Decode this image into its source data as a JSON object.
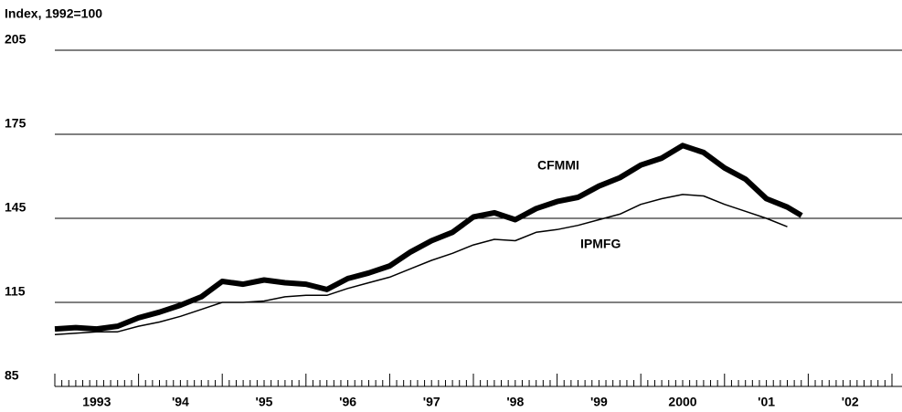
{
  "chart_data": {
    "type": "line",
    "y_label": "Index, 1992=100",
    "x": [
      1993.0,
      1993.25,
      1993.5,
      1993.75,
      1994.0,
      1994.25,
      1994.5,
      1994.75,
      1995.0,
      1995.25,
      1995.5,
      1995.75,
      1996.0,
      1996.25,
      1996.5,
      1996.75,
      1997.0,
      1997.25,
      1997.5,
      1997.75,
      1998.0,
      1998.25,
      1998.5,
      1998.75,
      1999.0,
      1999.25,
      1999.5,
      1999.75,
      2000.0,
      2000.25,
      2000.5,
      2000.75,
      2001.0,
      2001.25,
      2001.5,
      2001.75,
      2001.92
    ],
    "series": [
      {
        "name": "CFMMI",
        "color": "#000000",
        "width": 6,
        "values": [
          105.5,
          106,
          105.5,
          106.5,
          109.5,
          111.5,
          114,
          117,
          122.5,
          121.5,
          123,
          122,
          121.5,
          119.6,
          123.5,
          125.5,
          128,
          133,
          137,
          140,
          145.5,
          147,
          144.5,
          148.5,
          151,
          152.5,
          156.5,
          159.5,
          164,
          166.5,
          171,
          168.5,
          163,
          159,
          152,
          149,
          146
        ]
      },
      {
        "name": "IPMFG",
        "color": "#000000",
        "width": 1.5,
        "values": [
          103.5,
          104,
          104.5,
          104.5,
          106.5,
          108,
          110,
          112.5,
          115,
          115,
          115.5,
          117,
          117.5,
          117.5,
          120,
          122,
          124,
          127,
          130,
          132.5,
          135.5,
          137.5,
          137,
          140,
          141,
          142.5,
          144.5,
          146.5,
          150,
          152,
          153.5,
          153,
          150,
          147.5,
          145,
          142,
          null
        ]
      }
    ],
    "xlim": [
      1993,
      2003
    ],
    "xticks": [
      {
        "value": 1993.5,
        "label": "1993"
      },
      {
        "value": 1994.5,
        "label": "'94"
      },
      {
        "value": 1995.5,
        "label": "'95"
      },
      {
        "value": 1996.5,
        "label": "'96"
      },
      {
        "value": 1997.5,
        "label": "'97"
      },
      {
        "value": 1998.5,
        "label": "'98"
      },
      {
        "value": 1999.5,
        "label": "'99"
      },
      {
        "value": 2000.5,
        "label": "2000"
      },
      {
        "value": 2001.5,
        "label": "'01"
      },
      {
        "value": 2002.5,
        "label": "'02"
      }
    ],
    "ylim": [
      85,
      205
    ],
    "yticks": [
      85,
      115,
      145,
      175,
      205
    ],
    "grid": true
  }
}
